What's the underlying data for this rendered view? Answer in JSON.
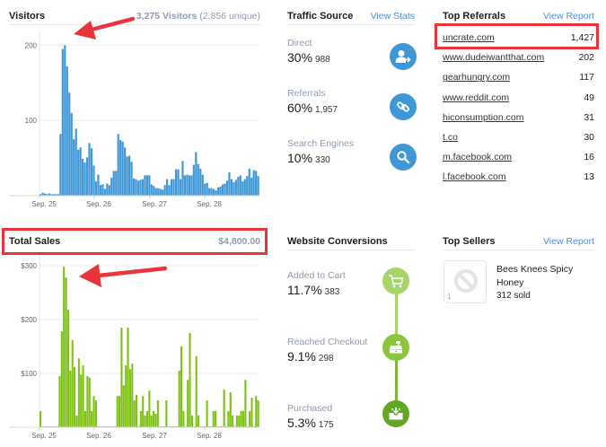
{
  "visitors": {
    "title": "Visitors",
    "summary_count": "3,275 Visitors",
    "summary_unique": "(2,856 unique)"
  },
  "traffic_source": {
    "title": "Traffic Source",
    "link": "View Stats",
    "items": [
      {
        "label": "Direct",
        "percent": "30%",
        "count": "988",
        "icon": "user-arrow-icon"
      },
      {
        "label": "Referrals",
        "percent": "60%",
        "count": "1,957",
        "icon": "link-icon"
      },
      {
        "label": "Search Engines",
        "percent": "10%",
        "count": "330",
        "icon": "search-icon"
      }
    ]
  },
  "top_referrals": {
    "title": "Top Referrals",
    "link": "View Report",
    "items": [
      {
        "name": "uncrate.com",
        "count": "1,427"
      },
      {
        "name": "www.dudeiwantthat.com",
        "count": "202"
      },
      {
        "name": "gearhungry.com",
        "count": "117"
      },
      {
        "name": "www.reddit.com",
        "count": "49"
      },
      {
        "name": "hiconsumption.com",
        "count": "31"
      },
      {
        "name": "t.co",
        "count": "30"
      },
      {
        "name": "m.facebook.com",
        "count": "16"
      },
      {
        "name": "l.facebook.com",
        "count": "13"
      }
    ]
  },
  "total_sales": {
    "title": "Total Sales",
    "amount": "$4,800.00"
  },
  "website_conversions": {
    "title": "Website Conversions",
    "items": [
      {
        "label": "Added to Cart",
        "percent": "11.7%",
        "count": "383",
        "icon": "cart-icon",
        "color": "#a6d36b"
      },
      {
        "label": "Reached Checkout",
        "percent": "9.1%",
        "count": "298",
        "icon": "cash-register-icon",
        "color": "#8cc63f"
      },
      {
        "label": "Purchased",
        "percent": "5.3%",
        "count": "175",
        "icon": "inbox-download-icon",
        "color": "#63a825"
      }
    ]
  },
  "top_sellers": {
    "title": "Top Sellers",
    "link": "View Report",
    "items": [
      {
        "rank": "1",
        "name": "Bees Knees Spicy Honey",
        "sold": "312 sold"
      }
    ]
  },
  "colors": {
    "visitors_bar": "#3f97d6",
    "sales_bar": "#7cc114",
    "link": "#4a90d9",
    "annotation": "#e8343a"
  },
  "chart_data": [
    {
      "type": "bar",
      "title": "Visitors",
      "xlabel": "",
      "ylabel": "",
      "x_tick_labels": [
        "Sep. 25",
        "Sep. 26",
        "Sep. 27",
        "Sep. 28"
      ],
      "y_tick_labels": [
        "100",
        "200"
      ],
      "ylim": [
        0,
        210
      ],
      "grid": true,
      "interval": "hourly",
      "values": [
        2,
        4,
        3,
        2,
        3,
        2,
        2,
        2,
        2,
        82,
        195,
        200,
        172,
        137,
        110,
        75,
        89,
        61,
        64,
        49,
        44,
        51,
        70,
        63,
        40,
        19,
        28,
        14,
        15,
        9,
        16,
        14,
        24,
        33,
        33,
        82,
        74,
        72,
        64,
        52,
        53,
        45,
        23,
        22,
        20,
        21,
        22,
        27,
        27,
        27,
        15,
        13,
        10,
        10,
        9,
        8,
        14,
        22,
        14,
        22,
        22,
        35,
        35,
        22,
        46,
        27,
        28,
        27,
        27,
        41,
        58,
        42,
        36,
        28,
        16,
        17,
        10,
        10,
        9,
        7,
        11,
        12,
        15,
        16,
        20,
        31,
        22,
        18,
        21,
        25,
        27,
        19,
        22,
        26,
        36,
        24,
        34,
        33,
        26
      ]
    },
    {
      "type": "bar",
      "title": "Total Sales",
      "xlabel": "",
      "ylabel": "",
      "x_tick_labels": [
        "Sep. 25",
        "Sep. 26",
        "Sep. 27",
        "Sep. 28"
      ],
      "y_tick_labels": [
        "$100",
        "$200",
        "$300"
      ],
      "ylim": [
        0,
        310
      ],
      "grid": true,
      "interval": "hourly",
      "values": [
        30,
        0,
        0,
        0,
        0,
        0,
        0,
        0,
        0,
        95,
        178,
        298,
        278,
        218,
        105,
        162,
        112,
        22,
        128,
        98,
        115,
        30,
        95,
        92,
        30,
        58,
        50,
        0,
        0,
        0,
        0,
        0,
        0,
        0,
        0,
        0,
        58,
        58,
        185,
        78,
        115,
        185,
        108,
        118,
        50,
        60,
        0,
        30,
        58,
        22,
        30,
        68,
        22,
        30,
        25,
        50,
        0,
        0,
        0,
        50,
        0,
        0,
        0,
        0,
        0,
        105,
        150,
        30,
        0,
        88,
        175,
        22,
        0,
        132,
        22,
        0,
        0,
        0,
        50,
        0,
        0,
        30,
        30,
        0,
        0,
        0,
        70,
        0,
        30,
        65,
        22,
        0,
        22,
        22,
        30,
        30,
        88,
        0,
        30,
        55,
        0,
        58,
        50
      ]
    }
  ]
}
